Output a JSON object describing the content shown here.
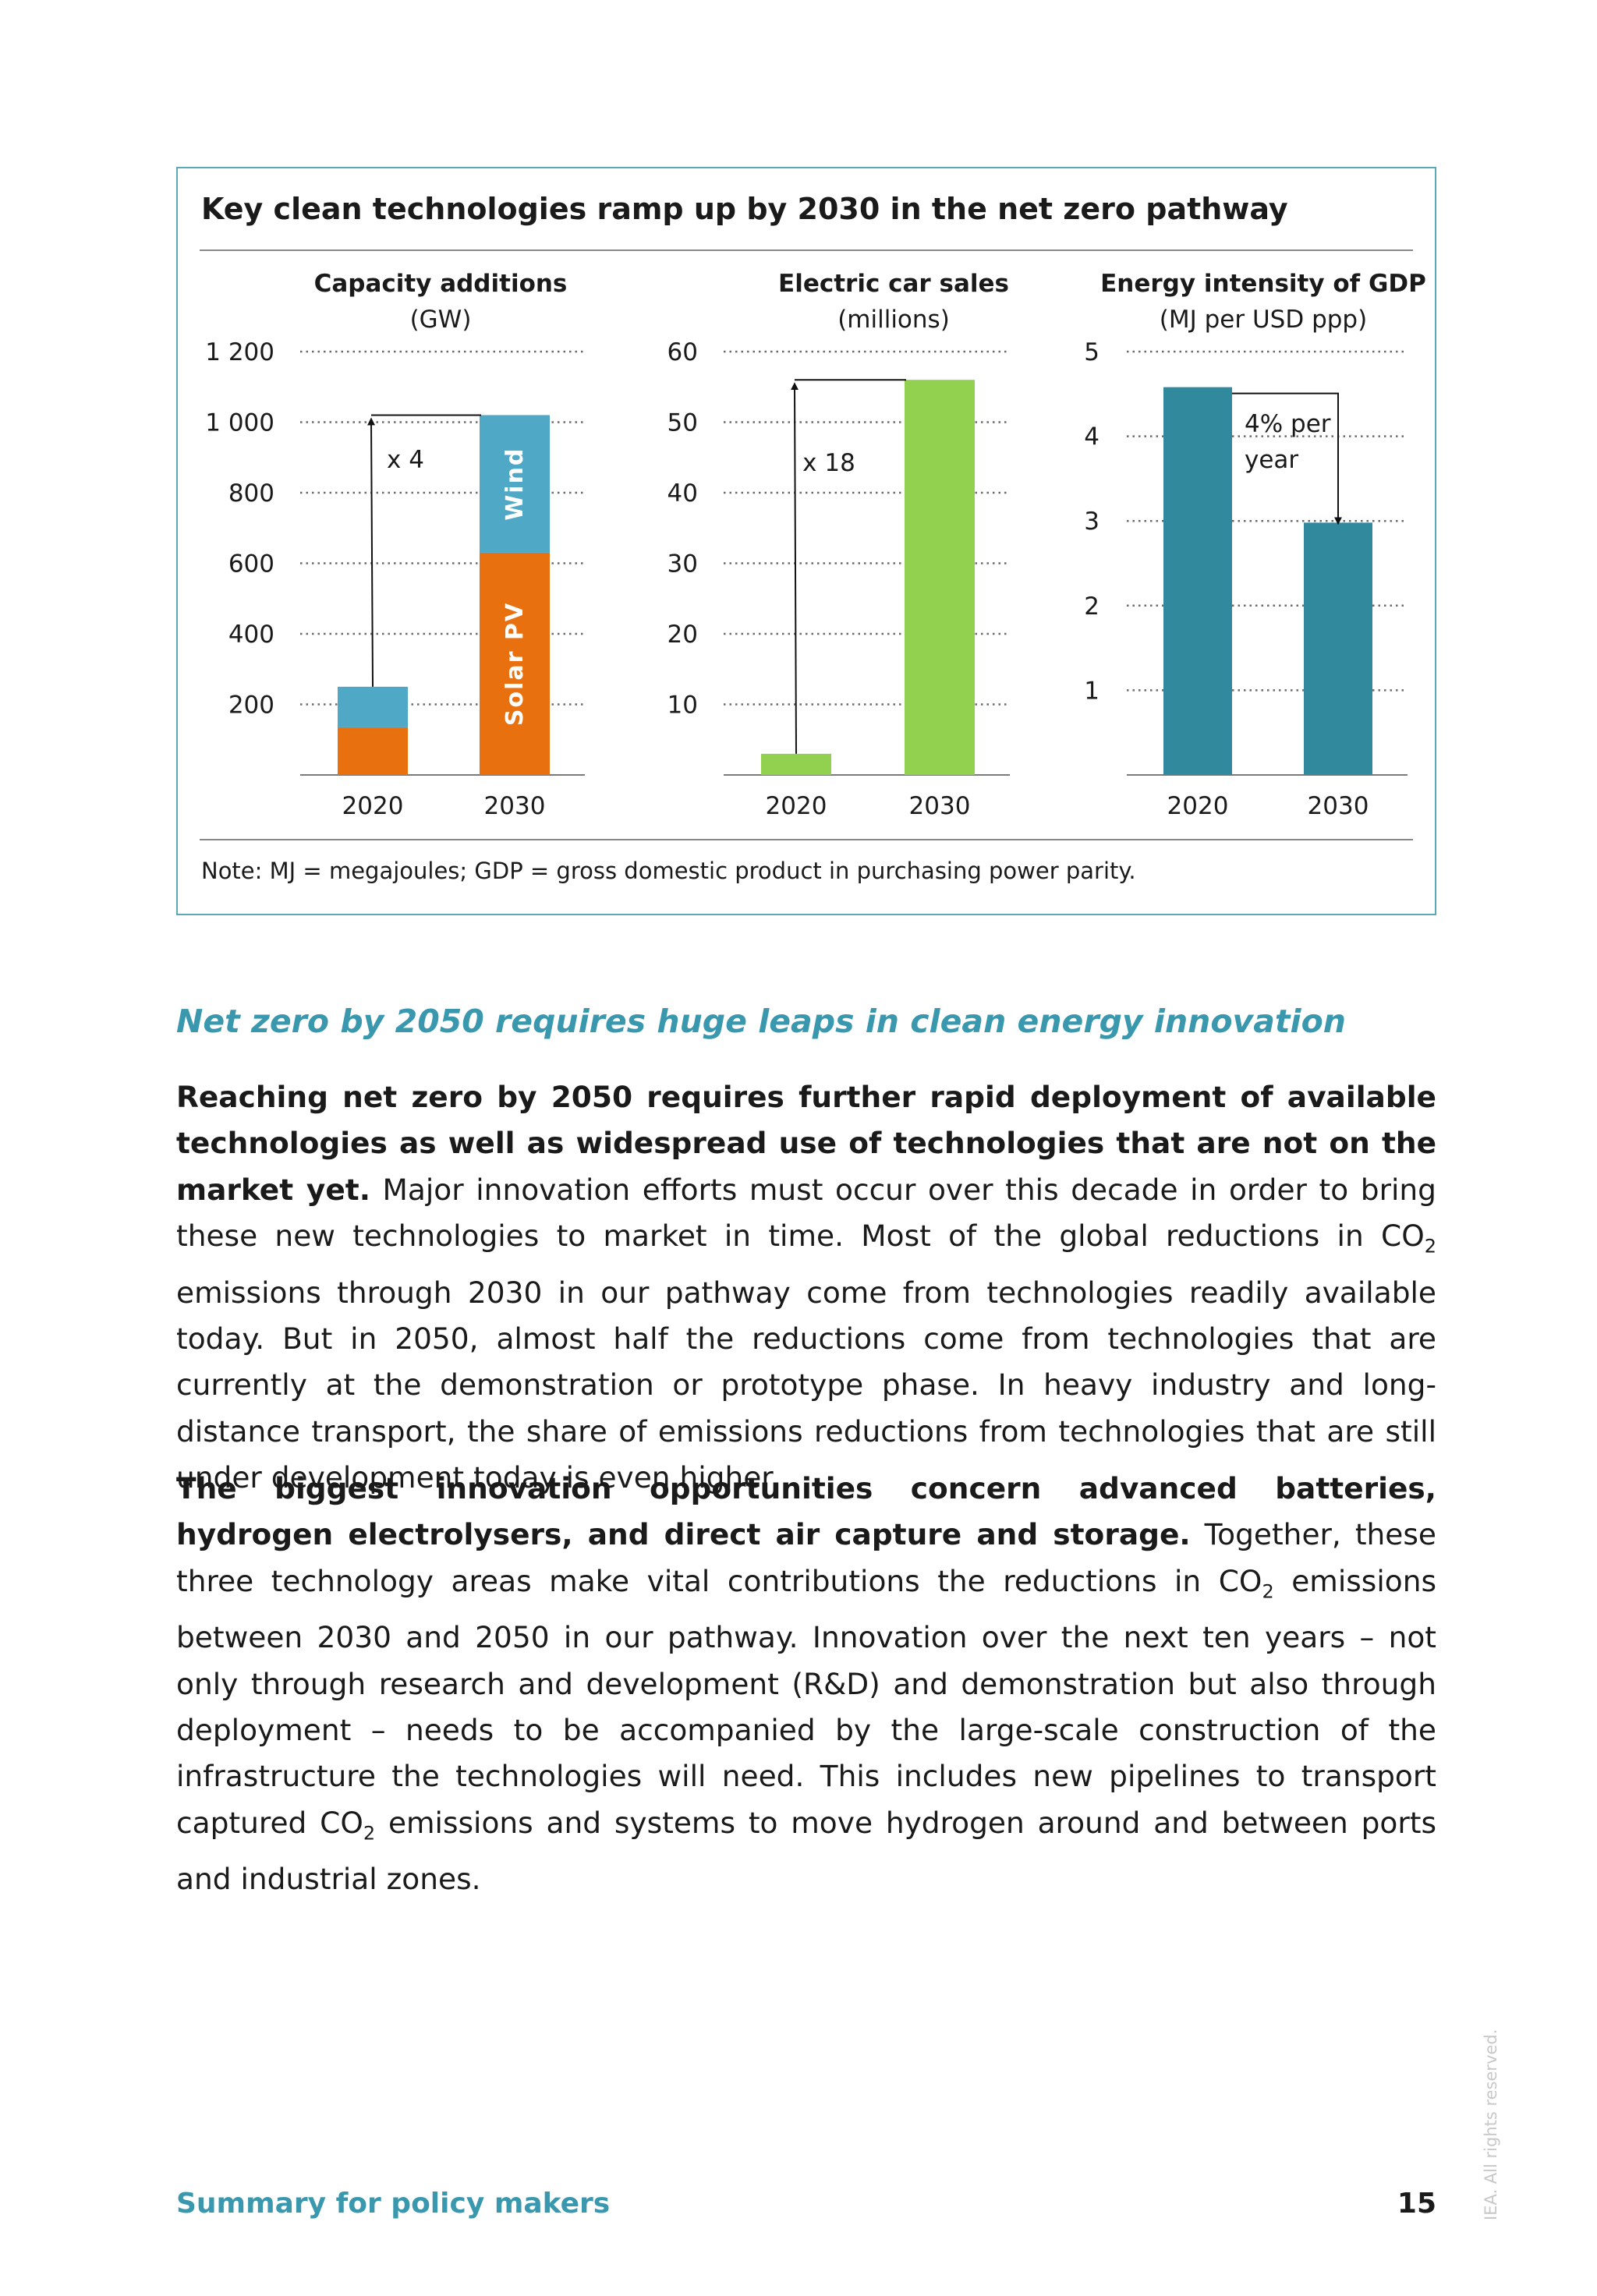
{
  "figure": {
    "title": "Key clean technologies ramp up by 2030 in the net zero pathway",
    "note": "Note: MJ = megajoules; GDP = gross domestic product in purchasing power parity."
  },
  "chart_data": [
    {
      "type": "bar",
      "title": "Capacity additions",
      "subtitle": "(GW)",
      "categories": [
        "2020",
        "2030"
      ],
      "stacked": true,
      "series": [
        {
          "name": "Solar PV",
          "values": [
            135,
            630
          ],
          "color": "#e8700e"
        },
        {
          "name": "Wind",
          "values": [
            115,
            390
          ],
          "color": "#4fa8c6"
        }
      ],
      "yticks": [
        "200",
        "400",
        "600",
        "800",
        "1 000",
        "1 200"
      ],
      "ylim": [
        0,
        1200
      ],
      "annotation": "x 4",
      "grid": true
    },
    {
      "type": "bar",
      "title": "Electric car sales",
      "subtitle": "(millions)",
      "categories": [
        "2020",
        "2030"
      ],
      "values": [
        3,
        56
      ],
      "color": "#92d050",
      "yticks": [
        "10",
        "20",
        "30",
        "40",
        "50",
        "60"
      ],
      "ylim": [
        0,
        60
      ],
      "annotation": "x 18",
      "grid": true
    },
    {
      "type": "bar",
      "title": "Energy intensity of GDP",
      "subtitle": "(MJ per USD ppp)",
      "categories": [
        "2020",
        "2030"
      ],
      "values": [
        4.58,
        2.98
      ],
      "color": "#31899e",
      "yticks": [
        "1",
        "2",
        "3",
        "4",
        "5"
      ],
      "ylim": [
        0,
        5
      ],
      "annotation_lines": [
        "4% per",
        "year"
      ],
      "grid": true
    }
  ],
  "section": {
    "heading": "Net zero by 2050 requires huge leaps in clean energy innovation"
  },
  "paragraphs": [
    {
      "bold": "Reaching net zero by 2050 requires further rapid deployment of available technologies as well as widespread use of technologies that are not on the market yet.",
      "text_a": " Major innovation efforts must occur over this decade in order to bring these new technologies to market in time. Most of the global reductions in CO",
      "sub": "2",
      "text_b": " emissions through 2030 in our pathway come from technologies readily available today. But in 2050, almost half the reductions come from technologies that are currently at the demonstration or prototype phase. In heavy industry and long-distance transport, the share of emissions reductions from technologies that are still under development today is even higher."
    },
    {
      "bold": "The biggest innovation opportunities concern advanced batteries, hydrogen electrolysers, and direct air capture and storage.",
      "text_a": " Together, these three technology areas make vital contributions the reductions in CO",
      "sub_a": "2",
      "text_b": " emissions between 2030 and 2050 in our pathway. Innovation over the next ten years – not only through research and development (R&D) and demonstration but also through deployment – needs to be accompanied by the large-scale construction of the infrastructure the technologies will need. This includes new pipelines to transport captured CO",
      "sub_b": "2",
      "text_c": " emissions and systems to move hydrogen around and between ports and industrial zones."
    }
  ],
  "footer": {
    "section_label": "Summary for policy makers",
    "page_number": "15",
    "watermark": "IEA. All rights reserved."
  }
}
